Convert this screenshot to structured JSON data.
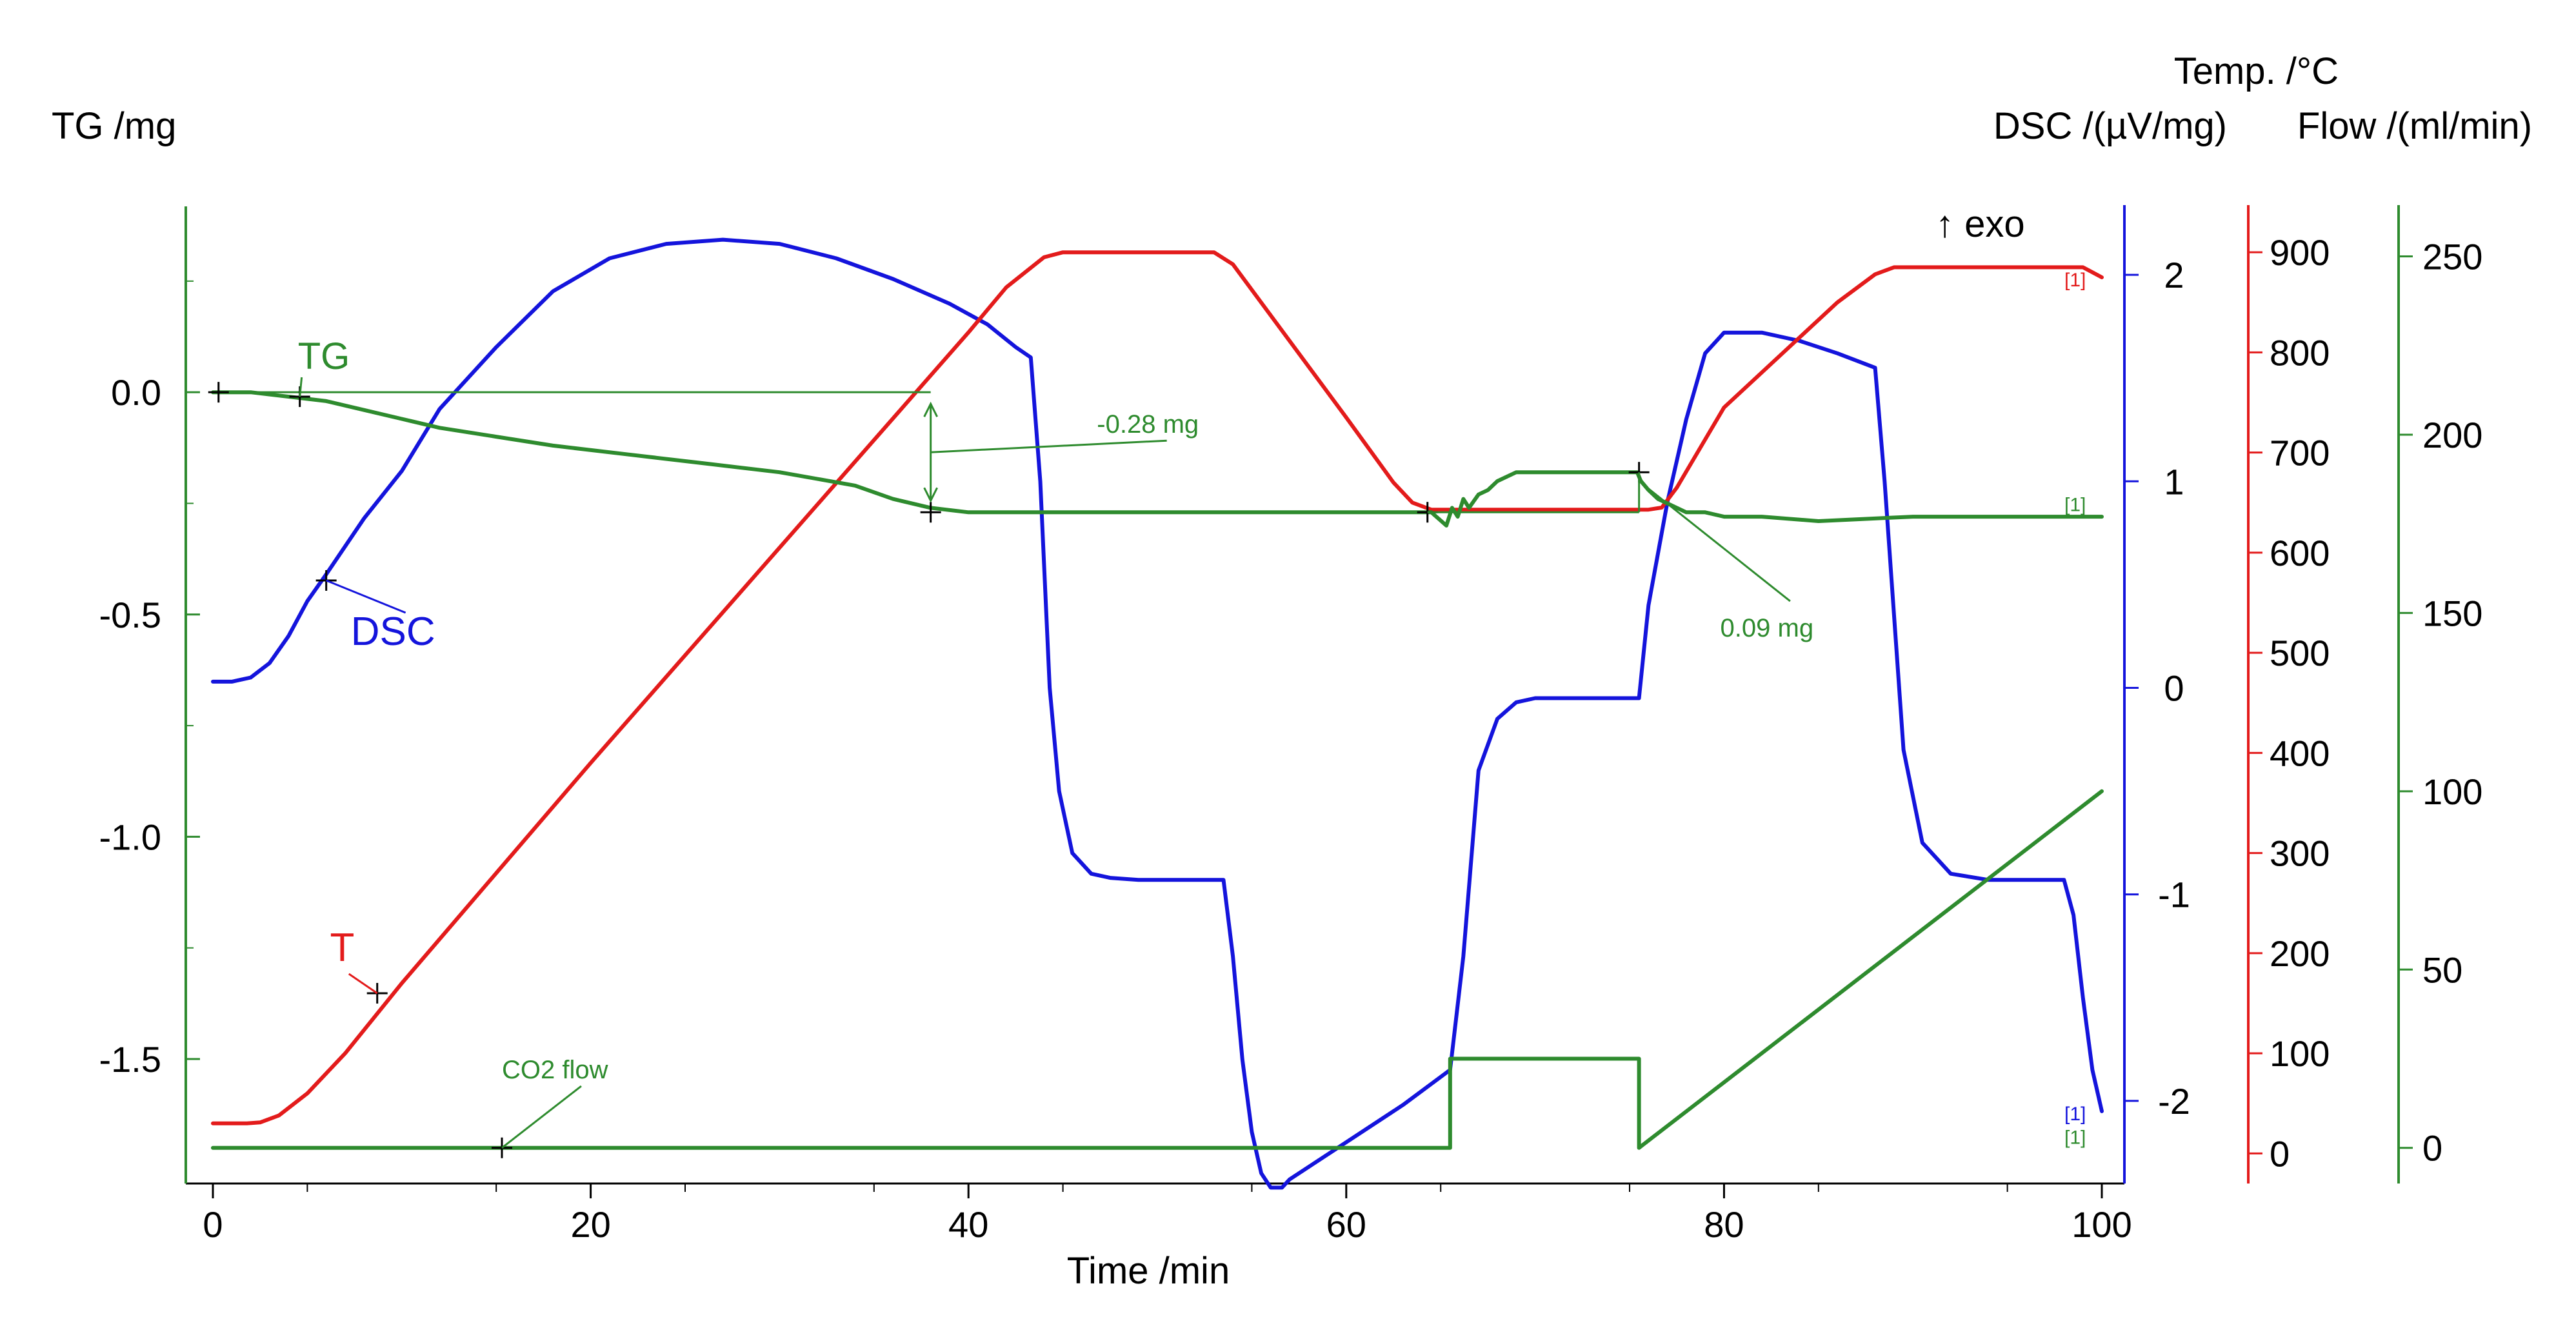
{
  "chart_data": {
    "type": "line",
    "xlabel": "Time /min",
    "xlim": [
      0,
      100
    ],
    "x_ticks": [
      "0",
      "20",
      "40",
      "60",
      "80",
      "100"
    ],
    "axes": {
      "tg": {
        "title": "TG /mg",
        "color": "#2e8b2e",
        "lim": [
          -1.78,
          0.45
        ],
        "ticks": [
          "0.0",
          "-0.5",
          "-1.0",
          "-1.5"
        ]
      },
      "dsc": {
        "title": "DSC /(µV/mg)",
        "color": "#1414dc",
        "lim": [
          -2.4,
          2.4
        ],
        "ticks": [
          "2",
          "1",
          "0",
          "-1",
          "-2"
        ],
        "exo_label": "↑ exo"
      },
      "temp": {
        "title": "Temp. /°C",
        "color": "#e31b1b",
        "lim": [
          -30,
          960
        ],
        "ticks": [
          "900",
          "800",
          "700",
          "600",
          "500",
          "400",
          "300",
          "200",
          "100",
          "0"
        ]
      },
      "flow": {
        "title": "Flow /(ml/min)",
        "color": "#2e8b2e",
        "lim": [
          -10,
          268
        ],
        "ticks": [
          "250",
          "200",
          "150",
          "100",
          "50",
          "0"
        ]
      }
    },
    "series": [
      {
        "name": "DSC",
        "axis": "dsc",
        "color": "#1414dc",
        "x": [
          0,
          1,
          2,
          3,
          4,
          5,
          6,
          8,
          10,
          12,
          15,
          18,
          21,
          24,
          27,
          30,
          33,
          36,
          39,
          41,
          42.5,
          43.3,
          43.8,
          44.3,
          44.8,
          45.5,
          46.5,
          47.5,
          49,
          52,
          53.5,
          54,
          54.5,
          55,
          55.5,
          56,
          56.6,
          57,
          60,
          63,
          65.5,
          66.2,
          67,
          68,
          69,
          70,
          72,
          74,
          75.5,
          76,
          77,
          78,
          79,
          80,
          82,
          84,
          86,
          88,
          88.5,
          89.5,
          90.5,
          92,
          94,
          98,
          98.5,
          99,
          99.5,
          100
        ],
        "values": [
          0.03,
          0.03,
          0.05,
          0.12,
          0.25,
          0.42,
          0.55,
          0.82,
          1.05,
          1.35,
          1.65,
          1.92,
          2.08,
          2.15,
          2.17,
          2.15,
          2.08,
          1.98,
          1.86,
          1.76,
          1.65,
          1.6,
          1.0,
          0.0,
          -0.5,
          -0.8,
          -0.9,
          -0.92,
          -0.93,
          -0.93,
          -0.93,
          -1.3,
          -1.8,
          -2.15,
          -2.35,
          -2.42,
          -2.42,
          -2.38,
          -2.2,
          -2.02,
          -1.85,
          -1.3,
          -0.4,
          -0.15,
          -0.07,
          -0.05,
          -0.05,
          -0.05,
          -0.05,
          0.4,
          0.9,
          1.3,
          1.62,
          1.72,
          1.72,
          1.68,
          1.62,
          1.55,
          1.0,
          -0.3,
          -0.75,
          -0.9,
          -0.93,
          -0.93,
          -1.1,
          -1.5,
          -1.85,
          -2.05
        ]
      },
      {
        "name": "T",
        "axis": "temp",
        "color": "#e31b1b",
        "x": [
          0,
          1,
          1.8,
          2.5,
          3.5,
          5,
          7,
          10,
          20,
          30,
          40,
          42,
          44,
          45,
          47,
          53,
          54,
          60,
          62.5,
          63.5,
          64.5,
          65.5,
          67,
          70,
          75,
          76,
          76.7,
          77.5,
          80,
          86,
          88,
          89,
          90,
          95,
          99,
          99.5,
          100
        ],
        "values": [
          30,
          30,
          30,
          31,
          38,
          60,
          100,
          170,
          390,
          605,
          820,
          865,
          895,
          900,
          900,
          900,
          888,
          735,
          670,
          650,
          643,
          643,
          643,
          643,
          643,
          643,
          645,
          665,
          745,
          850,
          878,
          885,
          885,
          885,
          885,
          880,
          875
        ]
      },
      {
        "name": "TG",
        "axis": "tg",
        "color": "#2e8b2e",
        "x": [
          0,
          2,
          4,
          6,
          8,
          10,
          12,
          15,
          18,
          22,
          26,
          30,
          34,
          36,
          38,
          40,
          45,
          50,
          55,
          60,
          63,
          64.5,
          65.3,
          65.6,
          65.9,
          66.2,
          66.5,
          67,
          67.5,
          68,
          69,
          70,
          72,
          74,
          75.4,
          75.6,
          76,
          76.5,
          77,
          78,
          79,
          80,
          82,
          85,
          90,
          95,
          100
        ],
        "values": [
          0.0,
          0.0,
          -0.01,
          -0.02,
          -0.04,
          -0.06,
          -0.08,
          -0.1,
          -0.12,
          -0.14,
          -0.16,
          -0.18,
          -0.21,
          -0.24,
          -0.26,
          -0.27,
          -0.27,
          -0.27,
          -0.27,
          -0.27,
          -0.27,
          -0.27,
          -0.3,
          -0.26,
          -0.28,
          -0.24,
          -0.26,
          -0.23,
          -0.22,
          -0.2,
          -0.18,
          -0.18,
          -0.18,
          -0.18,
          -0.18,
          -0.2,
          -0.22,
          -0.24,
          -0.25,
          -0.27,
          -0.27,
          -0.28,
          -0.28,
          -0.29,
          -0.28,
          -0.28,
          -0.28
        ]
      },
      {
        "name": "CO2 flow",
        "axis": "flow",
        "color": "#2e8b2e",
        "x": [
          0,
          65.5,
          65.5,
          75.5,
          75.5,
          100
        ],
        "values": [
          0,
          0,
          25,
          25,
          0,
          100
        ]
      }
    ],
    "annotations": {
      "tg_label": "TG",
      "dsc_label": "DSC",
      "t_label": "T",
      "co2_label": "CO2 flow",
      "mass_loss": "-0.28 mg",
      "mass_gain": "0.09 mg",
      "segment_marker": "[1]"
    }
  }
}
